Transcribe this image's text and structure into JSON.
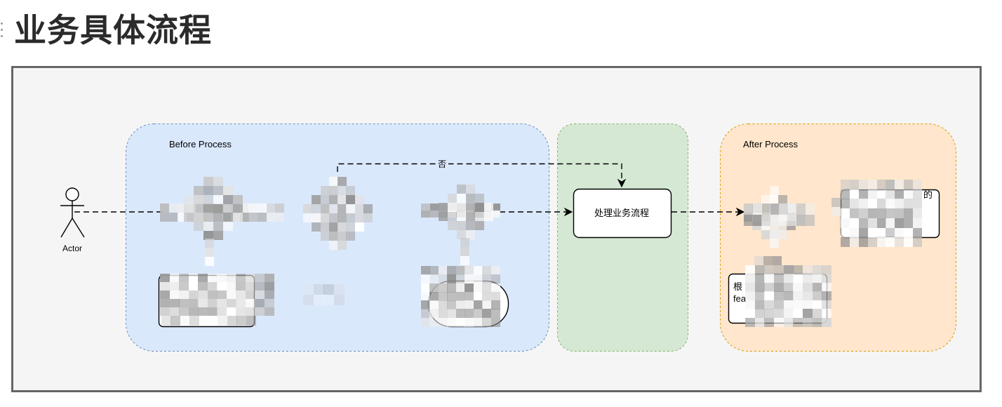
{
  "heading": "业务具体流程",
  "diagram": {
    "actor_label": "Actor",
    "before_label": "Before Process",
    "after_label": "After Process",
    "loop_label": "否",
    "process_box_label": "处理业务流程",
    "partial_text": {
      "after_box_fragment": "的",
      "note_line_1": "根",
      "note_line_2": "fea"
    }
  },
  "colors": {
    "frame_fill": "#f5f5f5",
    "before_fill": "#dae8fc",
    "before_border": "#6c8ebf",
    "middle_fill": "#d5e8d4",
    "middle_border": "#82b366",
    "after_fill": "#ffe6cc",
    "after_border": "#d79b00",
    "label_bg": "#dae8fc"
  },
  "icons": {
    "actor": "stick-figure-icon",
    "anchor": "heading-anchor-icon"
  }
}
